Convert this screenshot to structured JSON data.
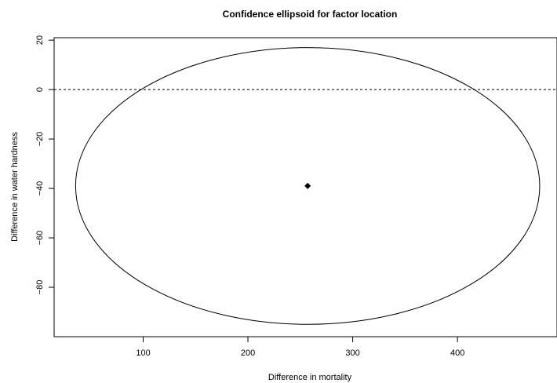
{
  "chart_data": {
    "type": "scatter",
    "title": "Confidence ellipsoid for factor location",
    "xlabel": "Difference in mortality",
    "ylabel": "Difference in water hardness",
    "xlim": [
      15,
      495
    ],
    "ylim": [
      -100,
      21
    ],
    "x_ticks": [
      100,
      200,
      300,
      400
    ],
    "y_ticks": [
      20,
      0,
      -20,
      -40,
      -60,
      -80
    ],
    "y_tick_labels": [
      "20",
      "0",
      "−20",
      "−40",
      "−60",
      "−80"
    ],
    "point": {
      "x": 257,
      "y": -39
    },
    "ellipse": {
      "center_x": 257,
      "center_y": -39,
      "x_min": 35,
      "x_max": 478,
      "y_min": -95,
      "y_max": 17
    },
    "reference_line": {
      "y": 0,
      "style": "dashed"
    },
    "grid": false
  }
}
